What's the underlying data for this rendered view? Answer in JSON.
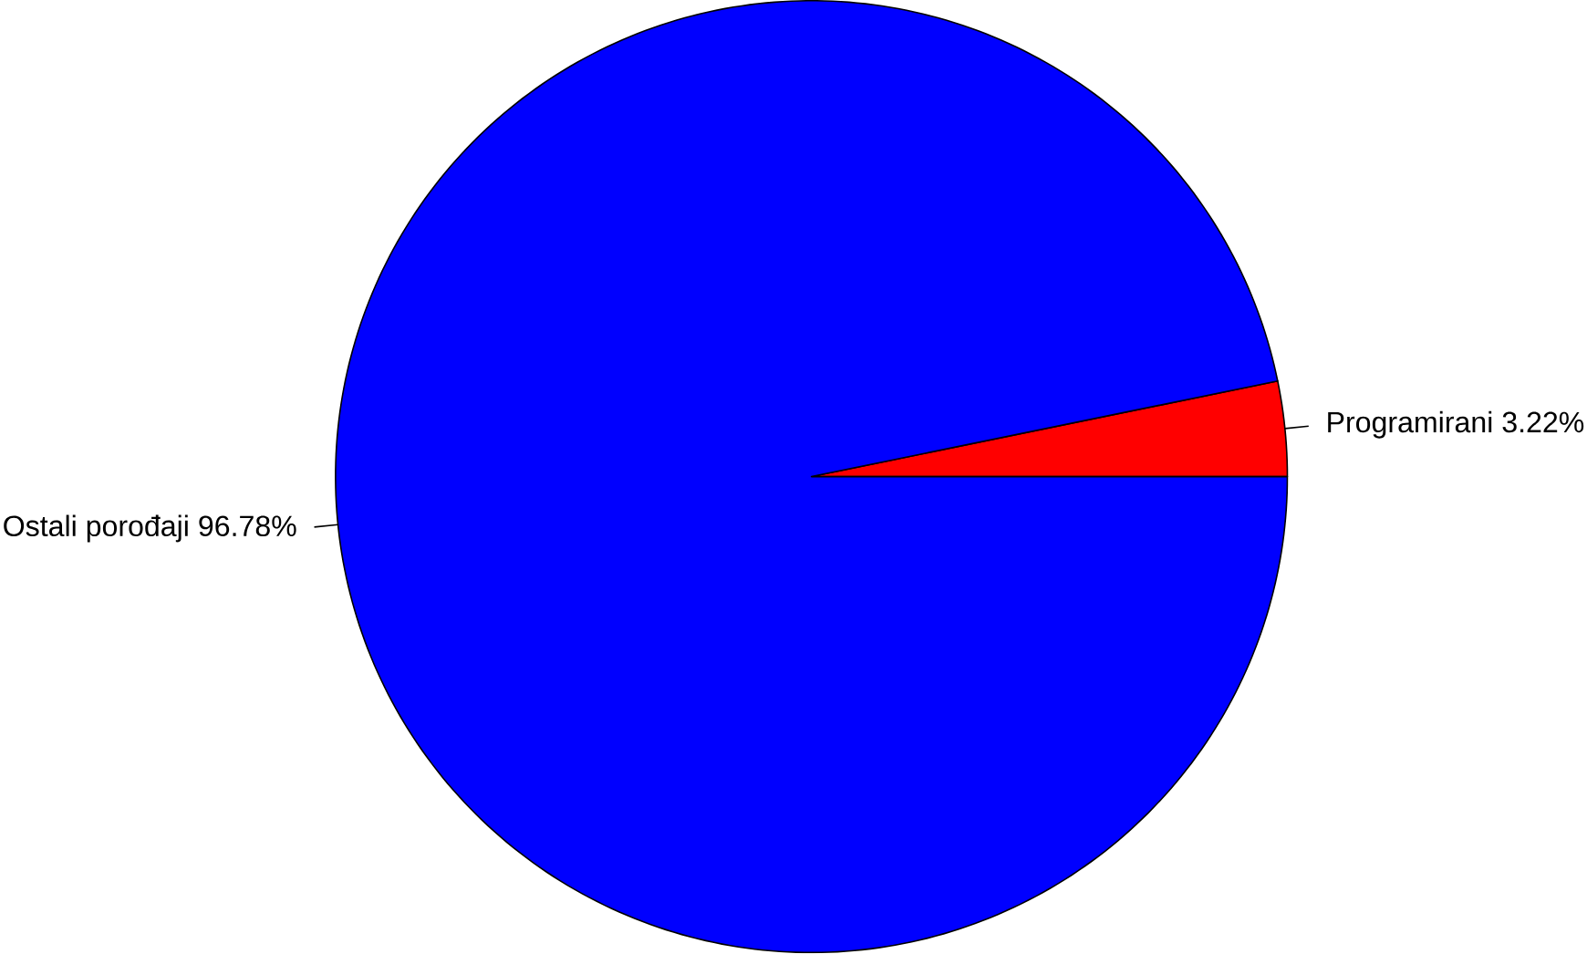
{
  "chart_data": {
    "type": "pie",
    "categories": [
      "Programirani",
      "Ostali porođaji"
    ],
    "values": [
      3.22,
      96.78
    ],
    "value_labels": [
      "3.22%",
      "96.78%"
    ],
    "colors": [
      "#ff0000",
      "#0000ff"
    ]
  }
}
